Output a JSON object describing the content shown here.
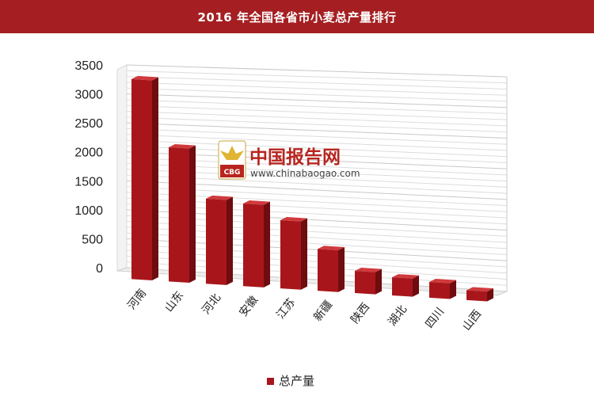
{
  "chart_data": {
    "type": "bar",
    "title": "2016 年全国各省市小麦总产量排行",
    "categories": [
      "河南",
      "山东",
      "河北",
      "安徽",
      "江苏",
      "新疆",
      "陕西",
      "湖北",
      "四川",
      "山西"
    ],
    "series": [
      {
        "name": "总产量",
        "values": [
          3450,
          2300,
          1450,
          1400,
          1150,
          700,
          370,
          300,
          260,
          160
        ]
      }
    ],
    "yticks": [
      0,
      500,
      1000,
      1500,
      2000,
      2500,
      3000,
      3500
    ],
    "ylim": [
      0,
      3500
    ],
    "grid": true,
    "legend_position": "bottom-center",
    "bar_color": "#a8161b"
  },
  "watermark": {
    "name": "中国报告网",
    "url": "www.chinabaogao.com",
    "logo_text": "CBG"
  }
}
